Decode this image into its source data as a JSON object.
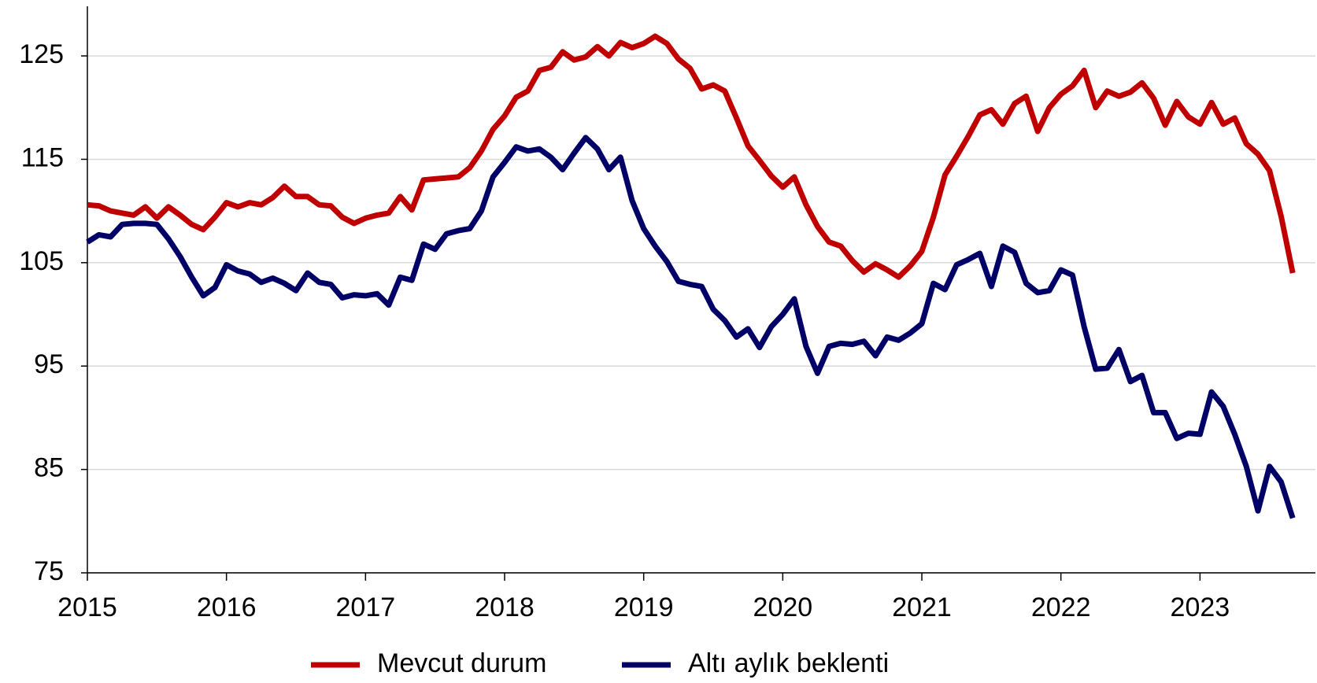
{
  "chart_data": {
    "type": "line",
    "x": [
      2015,
      2015.083,
      2015.167,
      2015.25,
      2015.333,
      2015.417,
      2015.5,
      2015.583,
      2015.667,
      2015.75,
      2015.833,
      2015.917,
      2016,
      2016.083,
      2016.167,
      2016.25,
      2016.333,
      2016.417,
      2016.5,
      2016.583,
      2016.667,
      2016.75,
      2016.833,
      2016.917,
      2017,
      2017.083,
      2017.167,
      2017.25,
      2017.333,
      2017.417,
      2017.5,
      2017.583,
      2017.667,
      2017.75,
      2017.833,
      2017.917,
      2018,
      2018.083,
      2018.167,
      2018.25,
      2018.333,
      2018.417,
      2018.5,
      2018.583,
      2018.667,
      2018.75,
      2018.833,
      2018.917,
      2019,
      2019.083,
      2019.167,
      2019.25,
      2019.333,
      2019.417,
      2019.5,
      2019.583,
      2019.667,
      2019.75,
      2019.833,
      2019.917,
      2020,
      2020.083,
      2020.167,
      2020.25,
      2020.333,
      2020.417,
      2020.5,
      2020.583,
      2020.667,
      2020.75,
      2020.833,
      2020.917,
      2021,
      2021.083,
      2021.167,
      2021.25,
      2021.333,
      2021.417,
      2021.5,
      2021.583,
      2021.667,
      2021.75,
      2021.833,
      2021.917,
      2022,
      2022.083,
      2022.167,
      2022.25,
      2022.333,
      2022.417,
      2022.5,
      2022.583,
      2022.667,
      2022.75,
      2022.833,
      2022.917,
      2023,
      2023.083,
      2023.167,
      2023.25,
      2023.333,
      2023.417,
      2023.5,
      2023.583,
      2023.667
    ],
    "series": [
      {
        "name": "Mevcut durum",
        "color": "#c00000",
        "values": [
          110.6,
          110.5,
          110.0,
          109.8,
          109.6,
          110.4,
          109.3,
          110.4,
          109.6,
          108.7,
          108.2,
          109.4,
          110.8,
          110.4,
          110.8,
          110.6,
          111.3,
          112.4,
          111.4,
          111.4,
          110.6,
          110.5,
          109.4,
          108.8,
          109.3,
          109.6,
          109.8,
          111.4,
          110.1,
          113.0,
          113.1,
          113.2,
          113.3,
          114.2,
          115.8,
          117.9,
          119.2,
          121.0,
          121.6,
          123.6,
          123.9,
          125.4,
          124.6,
          124.9,
          125.9,
          125.0,
          126.3,
          125.8,
          126.2,
          126.9,
          126.2,
          124.7,
          123.8,
          121.8,
          122.2,
          121.6,
          119.0,
          116.3,
          114.9,
          113.4,
          112.3,
          113.3,
          110.6,
          108.5,
          107.0,
          106.6,
          105.2,
          104.1,
          104.9,
          104.3,
          103.6,
          104.7,
          106.1,
          109.4,
          113.5,
          115.3,
          117.2,
          119.3,
          119.8,
          118.4,
          120.4,
          121.1,
          117.7,
          120.0,
          121.3,
          122.1,
          123.6,
          120.0,
          121.6,
          121.1,
          121.5,
          122.4,
          120.9,
          118.3,
          120.6,
          119.1,
          118.4,
          120.5,
          118.4,
          119.0,
          116.5,
          115.5,
          113.9,
          109.5,
          104.0
        ]
      },
      {
        "name": "Altı aylık beklenti",
        "color": "#000066",
        "values": [
          107.0,
          107.7,
          107.5,
          108.7,
          108.8,
          108.8,
          108.7,
          107.3,
          105.6,
          103.6,
          101.8,
          102.6,
          104.8,
          104.2,
          103.9,
          103.1,
          103.5,
          103.0,
          102.3,
          104.0,
          103.1,
          102.9,
          101.6,
          101.9,
          101.8,
          102.0,
          100.9,
          103.6,
          103.3,
          106.8,
          106.3,
          107.8,
          108.1,
          108.3,
          110.0,
          113.3,
          114.7,
          116.2,
          115.8,
          116.0,
          115.2,
          114.0,
          115.6,
          117.1,
          116.0,
          114.0,
          115.2,
          111.0,
          108.3,
          106.6,
          105.1,
          103.2,
          102.9,
          102.7,
          100.5,
          99.4,
          97.8,
          98.6,
          96.8,
          98.8,
          100.0,
          101.5,
          96.9,
          94.3,
          96.9,
          97.2,
          97.1,
          97.4,
          96.0,
          97.8,
          97.5,
          98.2,
          99.1,
          103.0,
          102.4,
          104.8,
          105.3,
          105.9,
          102.7,
          106.6,
          106.0,
          103.0,
          102.1,
          102.3,
          104.3,
          103.8,
          98.8,
          94.7,
          94.8,
          96.6,
          93.5,
          94.1,
          90.5,
          90.5,
          88.0,
          88.5,
          88.4,
          92.5,
          91.1,
          88.4,
          85.3,
          81.0,
          85.3,
          83.8,
          80.3
        ]
      }
    ],
    "xlim": [
      2015,
      2023.83
    ],
    "xticks": [
      2015,
      2016,
      2017,
      2018,
      2019,
      2020,
      2021,
      2022,
      2023
    ],
    "ylim": [
      75,
      129.8
    ],
    "yticks": [
      75,
      85,
      95,
      105,
      115,
      125
    ],
    "grid": true,
    "legend": "bottom"
  }
}
